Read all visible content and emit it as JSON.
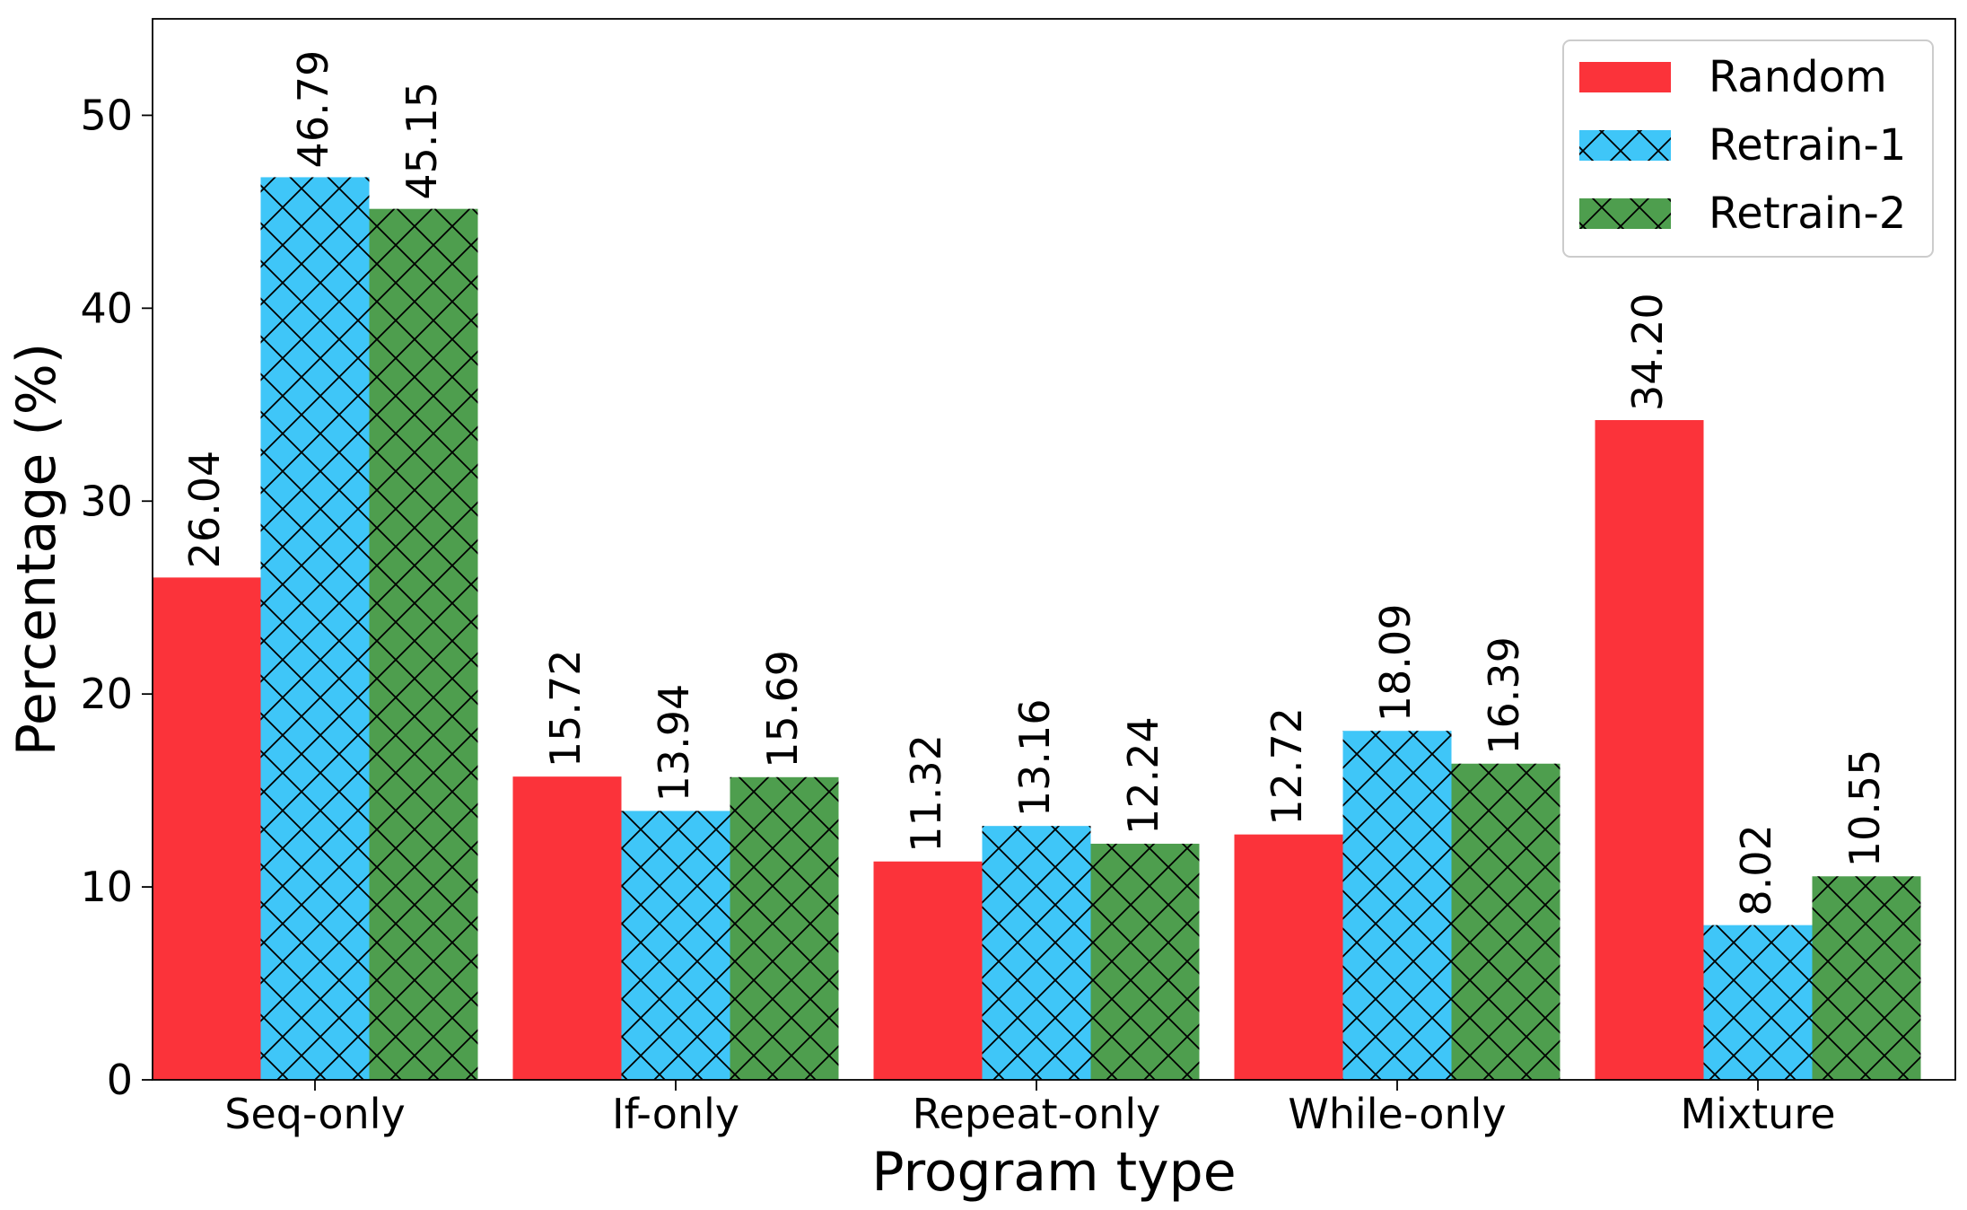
{
  "chart_data": {
    "type": "bar",
    "title": "",
    "xlabel": "Program type",
    "ylabel": "Percentage (%)",
    "ylim": [
      0,
      55
    ],
    "yticks": [
      0,
      10,
      20,
      30,
      40,
      50
    ],
    "grid": false,
    "legend_position": "top-right",
    "categories": [
      "Seq-only",
      "If-only",
      "Repeat-only",
      "While-only",
      "Mixture"
    ],
    "series": [
      {
        "name": "Random",
        "color": "#fb333a",
        "hatch": "none",
        "values": [
          26.04,
          15.72,
          11.32,
          12.72,
          34.2
        ],
        "labels": [
          "26.04",
          "15.72",
          "11.32",
          "12.72",
          "34.20"
        ]
      },
      {
        "name": "Retrain-1",
        "color": "#3fc6f8",
        "hatch": "cross",
        "values": [
          46.79,
          13.94,
          13.16,
          18.09,
          8.02
        ],
        "labels": [
          "46.79",
          "13.94",
          "13.16",
          "18.09",
          "8.02"
        ]
      },
      {
        "name": "Retrain-2",
        "color": "#4e9e4e",
        "hatch": "cross",
        "values": [
          45.15,
          15.69,
          12.24,
          16.39,
          10.55
        ],
        "labels": [
          "45.15",
          "15.69",
          "12.24",
          "16.39",
          "10.55"
        ]
      }
    ]
  }
}
